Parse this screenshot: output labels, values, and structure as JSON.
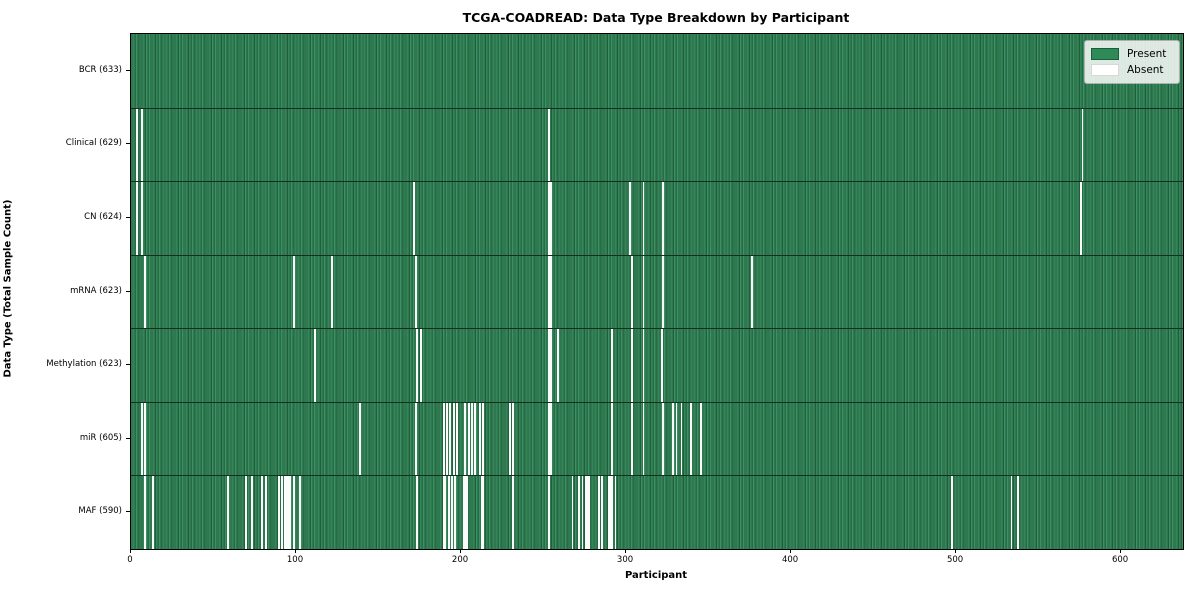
{
  "title": "TCGA-COADREAD: Data Type Breakdown by Participant",
  "x_axis_label": "Participant",
  "y_axis_label": "Data Type (Total Sample Count)",
  "legend": {
    "present_label": "Present",
    "absent_label": "Absent"
  },
  "colors": {
    "present": "#2e8b57",
    "absent": "#ffffff",
    "bar_edge": "#1d5c39",
    "background": "#ffffff"
  },
  "chart_data": {
    "type": "heatmap",
    "title": "TCGA-COADREAD: Data Type Breakdown by Participant",
    "xlabel": "Participant",
    "ylabel": "Data Type (Total Sample Count)",
    "x_ticks": [
      0,
      100,
      200,
      300,
      400,
      500,
      600
    ],
    "xlim": [
      0,
      637.5
    ],
    "total_participants": 633,
    "legend_entries": [
      "Present",
      "Absent"
    ],
    "legend_position": "upper right",
    "grid": false,
    "rows": [
      {
        "label": "BCR (633)",
        "data_type": "BCR",
        "present_count": 633,
        "absent_participants": []
      },
      {
        "label": "Clinical (629)",
        "data_type": "Clinical",
        "present_count": 629,
        "absent_participants": [
          3,
          6,
          253,
          576
        ]
      },
      {
        "label": "CN (624)",
        "data_type": "CN",
        "present_count": 624,
        "absent_participants": [
          3,
          6,
          171,
          253,
          254,
          302,
          310,
          322,
          575
        ]
      },
      {
        "label": "mRNA (623)",
        "data_type": "mRNA",
        "present_count": 623,
        "absent_participants": [
          8,
          98,
          121,
          172,
          253,
          254,
          303,
          310,
          322,
          376
        ]
      },
      {
        "label": "Methylation (623)",
        "data_type": "Methylation",
        "present_count": 623,
        "absent_participants": [
          111,
          173,
          175,
          253,
          254,
          258,
          291,
          303,
          310,
          321
        ]
      },
      {
        "label": "miR (605)",
        "data_type": "miR",
        "present_count": 605,
        "absent_participants": [
          6,
          8,
          138,
          172,
          189,
          191,
          193,
          195,
          197,
          202,
          204,
          206,
          208,
          211,
          213,
          229,
          231,
          253,
          254,
          291,
          303,
          310,
          322,
          328,
          330,
          333,
          339,
          345
        ]
      },
      {
        "label": "MAF (590)",
        "data_type": "MAF",
        "present_count": 590,
        "absent_participants": [
          8,
          13,
          58,
          69,
          73,
          79,
          81,
          89,
          91,
          93,
          94,
          95,
          96,
          98,
          102,
          173,
          189,
          190,
          192,
          194,
          196,
          201,
          202,
          203,
          212,
          213,
          231,
          253,
          267,
          271,
          273,
          275,
          276,
          277,
          283,
          285,
          289,
          290,
          291,
          293,
          497,
          533,
          537
        ]
      }
    ]
  }
}
